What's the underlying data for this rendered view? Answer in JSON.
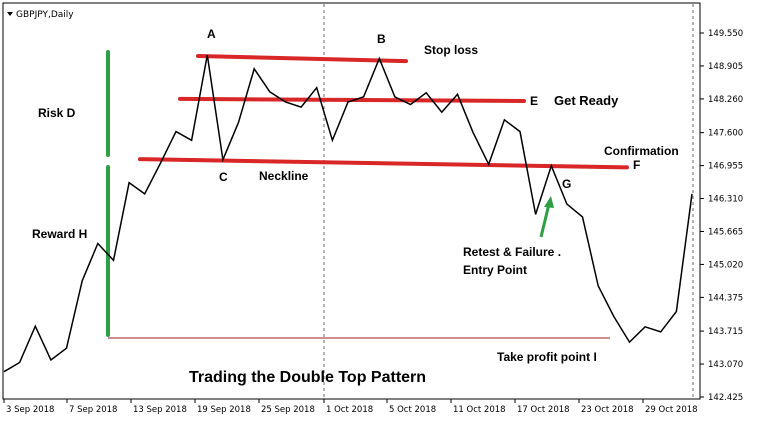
{
  "chart_data": {
    "type": "line",
    "symbol_label": "GBPJPY,Daily",
    "title": "Trading the Double Top Pattern",
    "y_ticks": [
      "149.550",
      "148.905",
      "148.260",
      "147.600",
      "146.955",
      "146.310",
      "145.665",
      "145.020",
      "144.375",
      "143.715",
      "143.070",
      "142.425"
    ],
    "ylim": [
      142.425,
      149.55
    ],
    "x_tick_labels": [
      "3 Sep 2018",
      "7 Sep 2018",
      "13 Sep 2018",
      "19 Sep 2018",
      "25 Sep 2018",
      "1 Oct 2018",
      "5 Oct 2018",
      "11 Oct 2018",
      "17 Oct 2018",
      "23 Oct 2018",
      "29 Oct 2018"
    ],
    "series": [
      {
        "values": [
          142.92,
          143.1,
          143.81,
          143.15,
          143.38,
          144.7,
          145.43,
          145.1,
          146.62,
          146.4,
          147.0,
          147.62,
          147.45,
          149.12,
          147.07,
          147.8,
          148.85,
          148.4,
          148.2,
          148.1,
          148.48,
          147.45,
          148.2,
          148.3,
          149.05,
          148.3,
          148.15,
          148.38,
          148.0,
          148.35,
          147.6,
          146.98,
          147.85,
          147.62,
          146.0,
          146.95,
          146.2,
          145.95,
          144.6,
          144.0,
          143.5,
          143.8,
          143.7,
          144.1,
          146.4
        ]
      }
    ],
    "horizontal_levels": {
      "stop_loss": [
        149.1,
        149.0
      ],
      "get_ready": [
        148.26,
        148.22
      ],
      "neckline_confirmation": [
        147.08,
        146.92
      ],
      "take_profit": 143.58
    },
    "annotations": {
      "A": "A",
      "B": "B",
      "C": "C",
      "D": "Risk  D",
      "E": "E",
      "F": "F",
      "G": "G",
      "H": "Reward H",
      "stop_loss": "Stop loss",
      "get_ready": "Get Ready",
      "neckline": "Neckline",
      "confirmation": "Confirmation",
      "retest_line1": "Retest & Failure .",
      "retest_line2": "Entry Point",
      "take_profit": "Take profit point  I"
    },
    "colors": {
      "price": "#000000",
      "levels": "#d92626",
      "risk_reward": "#2ea043",
      "take_profit": "#9c1d1d"
    }
  }
}
